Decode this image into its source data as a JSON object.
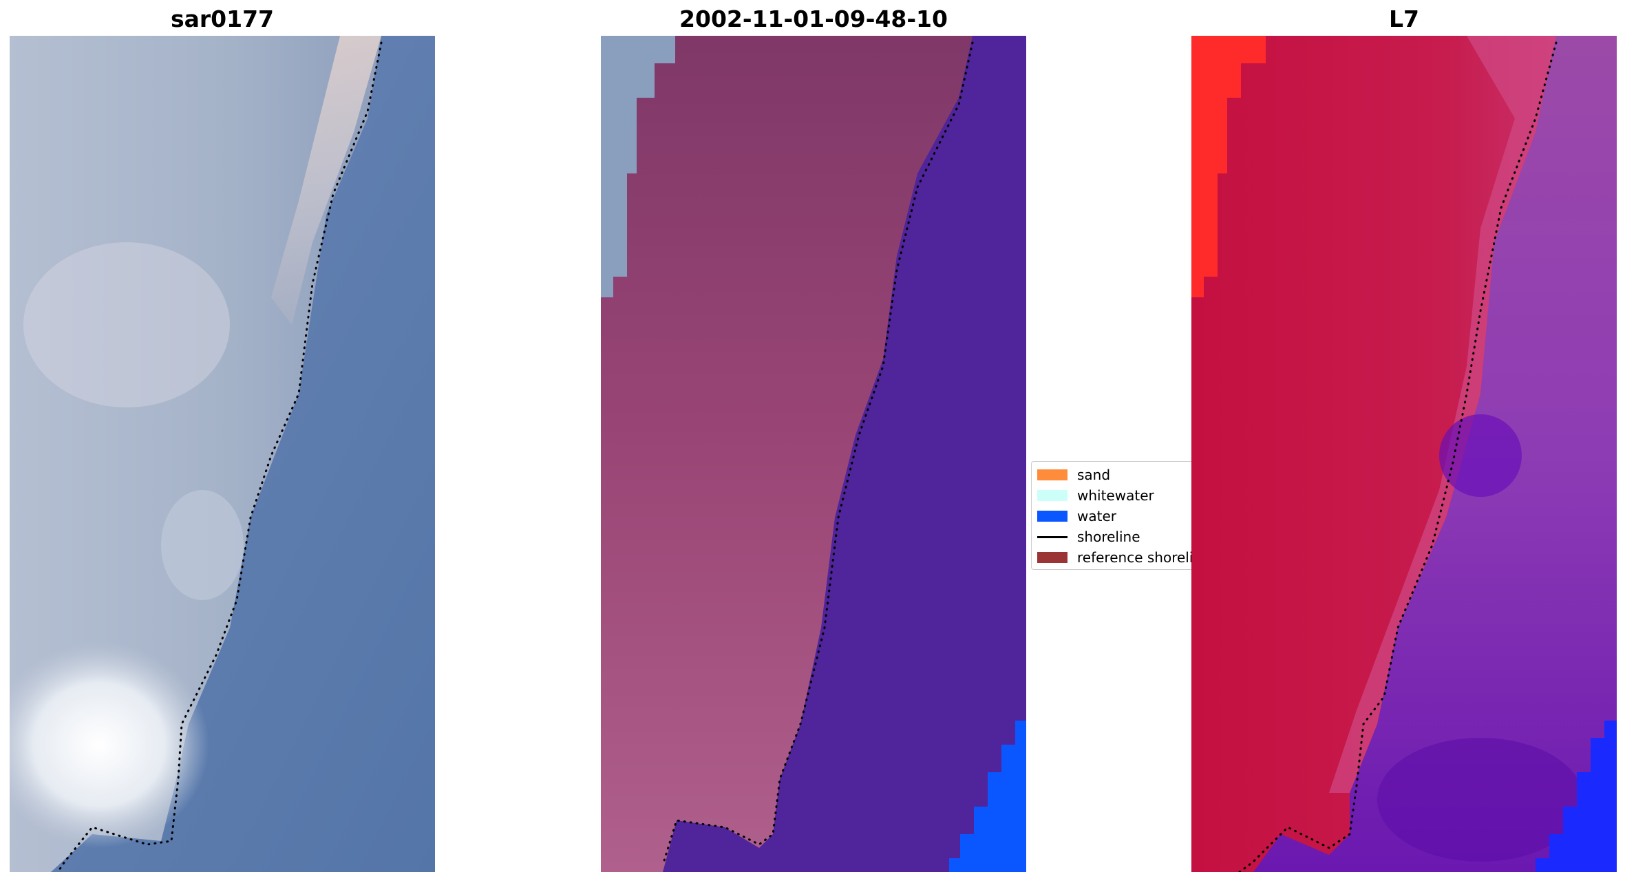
{
  "panels": [
    {
      "title": "sar0177"
    },
    {
      "title": "2002-11-01-09-48-10"
    },
    {
      "title": "L7"
    }
  ],
  "legend": {
    "items": [
      {
        "label": "sand",
        "color": "#ff8c3a",
        "kind": "patch"
      },
      {
        "label": "whitewater",
        "color": "#ccfff8",
        "kind": "patch"
      },
      {
        "label": "water",
        "color": "#0a56ff",
        "kind": "patch"
      },
      {
        "label": "shoreline",
        "color": "#000000",
        "kind": "line"
      },
      {
        "label": "reference shoreline",
        "color": "#9b3535",
        "kind": "patch"
      }
    ]
  },
  "colors": {
    "rgb_land": "#a9b6cc",
    "rgb_water": "#5f7fb0",
    "class_land": "#9a4676",
    "class_water": "#50249a",
    "class_water_pixels": "#0a56ff",
    "mndwi_land": "#c41749",
    "mndwi_water": "#8a3cb0",
    "mndwi_cloud": "#ff2222"
  }
}
